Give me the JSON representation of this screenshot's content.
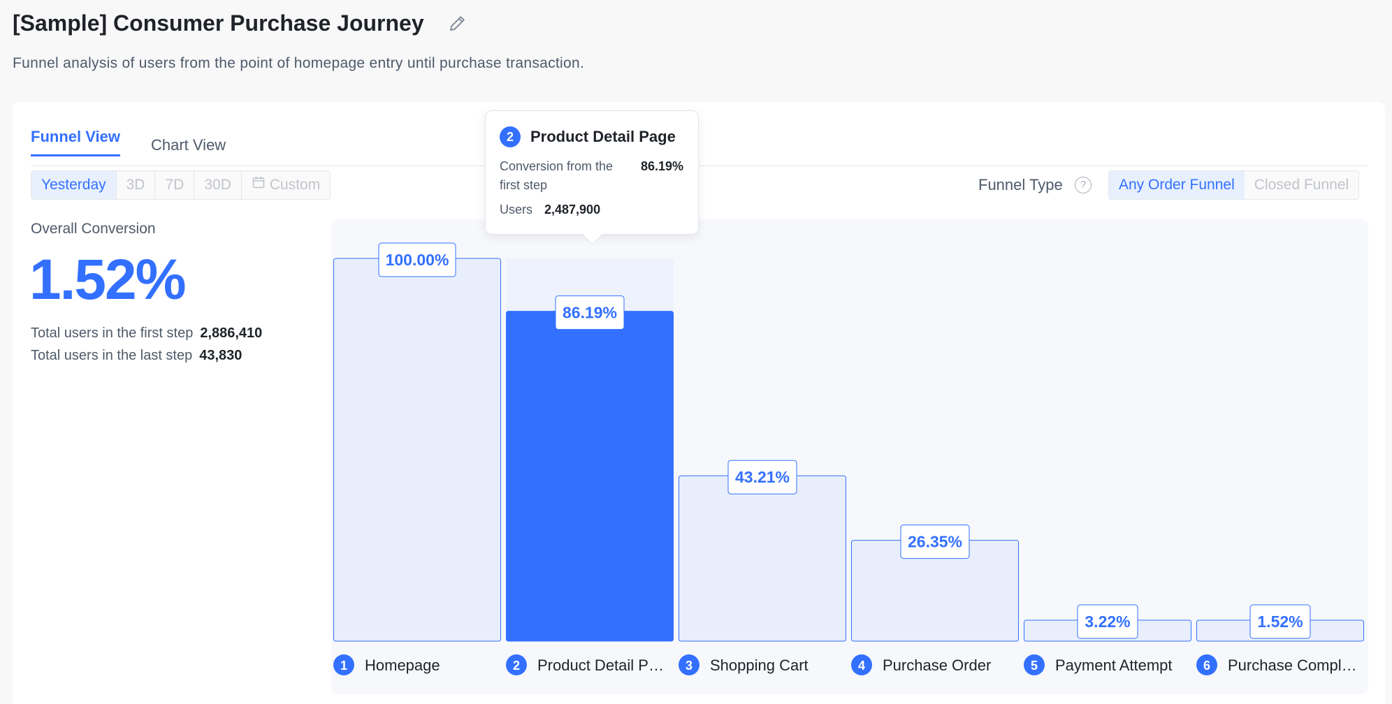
{
  "header": {
    "title": "[Sample] Consumer Purchase Journey",
    "description": "Funnel analysis of users from the point of homepage entry until purchase transaction."
  },
  "tabs": [
    {
      "label": "Funnel View",
      "active": true
    },
    {
      "label": "Chart View",
      "active": false
    }
  ],
  "date_range": {
    "options": [
      "Yesterday",
      "3D",
      "7D",
      "30D"
    ],
    "custom_label": "Custom",
    "selected": "Yesterday"
  },
  "funnel_type": {
    "label": "Funnel Type",
    "options": [
      "Any Order Funnel",
      "Closed Funnel"
    ],
    "selected": "Any Order Funnel"
  },
  "overall": {
    "label": "Overall Conversion",
    "value": "1.52%",
    "first_step_label": "Total users in the first step",
    "first_step_value": "2,886,410",
    "last_step_label": "Total users in the last step",
    "last_step_value": "43,830"
  },
  "tooltip": {
    "step_number": "2",
    "title": "Product Detail Page",
    "conversion_label": "Conversion from the first step",
    "conversion_value": "86.19%",
    "users_label": "Users",
    "users_value": "2,487,900"
  },
  "colors": {
    "accent": "#3370ff",
    "bar_fill": "#e8eefb",
    "bar_active": "#3370ff"
  },
  "chart_data": {
    "type": "bar",
    "categories": [
      "Homepage",
      "Product Detail P…",
      "Shopping Cart",
      "Purchase Order",
      "Payment Attempt",
      "Purchase Compl…"
    ],
    "values": [
      100.0,
      86.19,
      43.21,
      26.35,
      3.22,
      1.52
    ],
    "data_labels": [
      "100.00%",
      "86.19%",
      "43.21%",
      "26.35%",
      "3.22%",
      "1.52%"
    ],
    "ylim": [
      0,
      100
    ],
    "highlighted_index": 1
  }
}
